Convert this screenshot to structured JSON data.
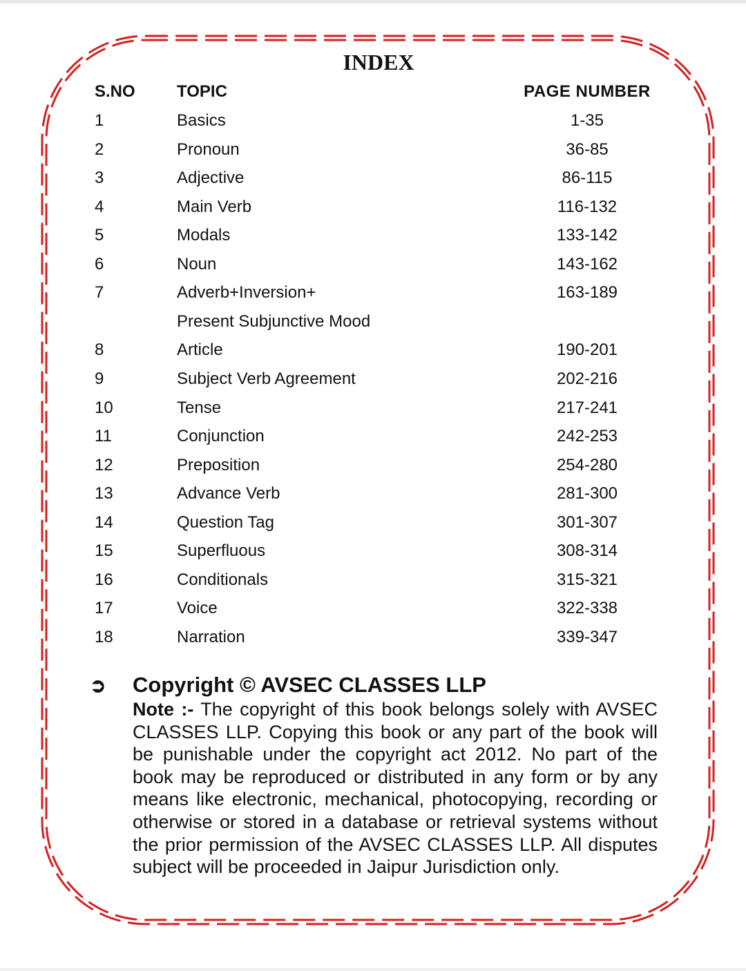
{
  "title": "INDEX",
  "headers": {
    "sno": "S.NO",
    "topic": "TOPIC",
    "page": "PAGE  NUMBER"
  },
  "rows": [
    {
      "sno": "1",
      "topic": "Basics",
      "page": "1-35"
    },
    {
      "sno": "2",
      "topic": "Pronoun",
      "page": "36-85"
    },
    {
      "sno": "3",
      "topic": "Adjective",
      "page": "86-115"
    },
    {
      "sno": "4",
      "topic": "Main  Verb",
      "page": "116-132"
    },
    {
      "sno": "5",
      "topic": "Modals",
      "page": "133-142"
    },
    {
      "sno": "6",
      "topic": "Noun",
      "page": "143-162"
    },
    {
      "sno": "7",
      "topic": "Adverb+Inversion+",
      "page": "163-189"
    },
    {
      "sno": "",
      "topic": "Present  Subjunctive  Mood",
      "page": ""
    },
    {
      "sno": "8",
      "topic": "Article",
      "page": "190-201"
    },
    {
      "sno": "9",
      "topic": "Subject  Verb  Agreement",
      "page": "202-216"
    },
    {
      "sno": "10",
      "topic": "Tense",
      "page": "217-241"
    },
    {
      "sno": "11",
      "topic": "Conjunction",
      "page": "242-253"
    },
    {
      "sno": "12",
      "topic": "Preposition",
      "page": "254-280"
    },
    {
      "sno": "13",
      "topic": "Advance  Verb",
      "page": "281-300"
    },
    {
      "sno": "14",
      "topic": "Question  Tag",
      "page": "301-307"
    },
    {
      "sno": "15",
      "topic": "Superfluous",
      "page": "308-314"
    },
    {
      "sno": "16",
      "topic": "Conditionals",
      "page": "315-321"
    },
    {
      "sno": "17",
      "topic": "Voice",
      "page": "322-338"
    },
    {
      "sno": "18",
      "topic": "Narration",
      "page": "339-347"
    }
  ],
  "copyright": {
    "bullet_icon": "arrow-right-circle-icon",
    "heading": "Copyright © AVSEC CLASSES LLP",
    "note_label": "Note :-",
    "note_text": " The copyright of this book belongs solely with AVSEC CLASSES LLP. Copying this book or any part of the book will be punishable under the copyright act 2012. No part of the book may be reproduced or distributed in any form or by any means like electronic, mechanical, photocopying, recording or otherwise or stored in a database or retrieval systems without the prior permission of the AVSEC CLASSES LLP. All disputes subject will be proceeded in Jaipur Jurisdiction only."
  },
  "colors": {
    "border": "#d41f1f"
  }
}
